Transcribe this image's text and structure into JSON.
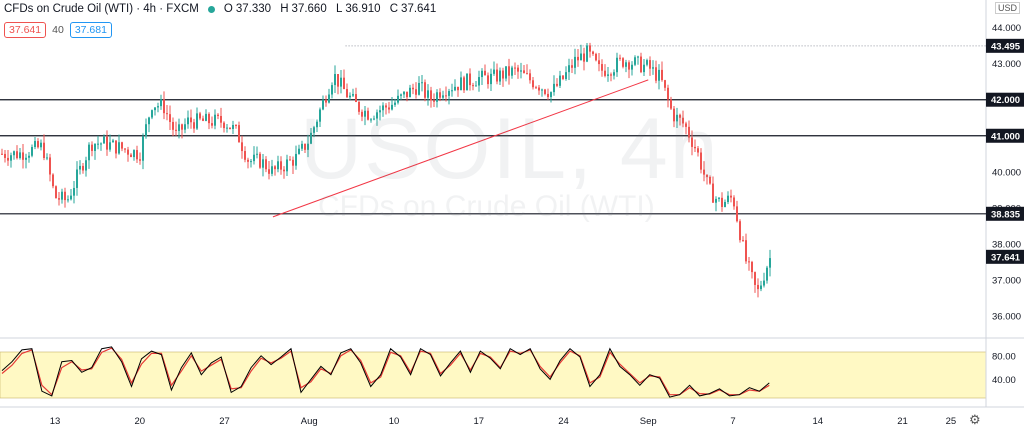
{
  "header": {
    "symbol_title": "CFDs on Crude Oil (WTI) · 4h · FXCM",
    "ohlc": [
      {
        "label": "O",
        "value": "37.330"
      },
      {
        "label": "H",
        "value": "37.660"
      },
      {
        "label": "L",
        "value": "36.910"
      },
      {
        "label": "C",
        "value": "37.641"
      }
    ],
    "bid": "37.641",
    "spread": "40",
    "ask": "37.681",
    "currency": "USD",
    "watermark": "USOIL, 4h",
    "watermark_sub": "CFDs on Crude Oil (WTI)"
  },
  "colors": {
    "up": "#26a69a",
    "down": "#ef5350",
    "trendline": "#f23645",
    "stoch_band": "#fff9c4",
    "k_line": "#000000",
    "d_line": "#e53935"
  },
  "chart_data": {
    "type": "line",
    "title": "CFDs on Crude Oil (WTI) · 4h · FXCM",
    "xlabel": "",
    "ylabel": "",
    "ylim": [
      35.5,
      44.6
    ],
    "x_tick_labels": [
      "13",
      "20",
      "27",
      "Aug",
      "10",
      "17",
      "24",
      "Sep",
      "7",
      "14",
      "21",
      "25"
    ],
    "y_tick_labels": [
      "44.000",
      "43.000",
      "42.000",
      "41.000",
      "40.000",
      "39.000",
      "38.000",
      "37.000",
      "36.000"
    ],
    "price_labels": [
      "43.495",
      "42.000",
      "41.000",
      "38.835",
      "37.641"
    ],
    "horizontal_levels": [
      43.495,
      42.0,
      41.0,
      38.835
    ],
    "trendline": {
      "from": [
        "Jul 31",
        38.75
      ],
      "to": [
        "Aug 31",
        42.55
      ]
    },
    "series": [
      {
        "x": [
          "Jul 10",
          "Jul 12",
          "Jul 13",
          "Jul 14",
          "Jul 16",
          "Jul 17",
          "Jul 20",
          "Jul 21",
          "Jul 22",
          "Jul 23",
          "Jul 24",
          "Jul 27",
          "Jul 28",
          "Jul 29",
          "Jul 30",
          "Jul 31",
          "Aug 2",
          "Aug 3",
          "Aug 4",
          "Aug 5",
          "Aug 6",
          "Aug 7",
          "Aug 8",
          "Aug 10",
          "Aug 12",
          "Aug 13",
          "Aug 14",
          "Aug 17",
          "Aug 18",
          "Aug 20",
          "Aug 21",
          "Aug 23",
          "Aug 24",
          "Aug 25",
          "Aug 26",
          "Aug 27",
          "Aug 28",
          "Aug 29",
          "Aug 31",
          "Sep 1",
          "Sep 2",
          "Sep 3",
          "Sep 4",
          "Sep 5",
          "Sep 6",
          "Sep 7",
          "Sep 8",
          "Sep 9",
          "Sep 10"
        ],
        "values": [
          40.5,
          40.7,
          39.3,
          39.2,
          40.8,
          40.8,
          40.5,
          41.9,
          41.8,
          41.0,
          41.4,
          41.4,
          41.1,
          40.3,
          40.3,
          40.0,
          40.4,
          40.9,
          41.8,
          42.7,
          42.2,
          41.8,
          41.6,
          41.9,
          42.4,
          42.0,
          42.3,
          42.6,
          42.6,
          42.8,
          42.6,
          42.2,
          42.6,
          43.1,
          43.3,
          42.8,
          42.9,
          43.1,
          42.9,
          42.6,
          41.6,
          41.3,
          40.6,
          39.5,
          39.1,
          39.3,
          37.6,
          36.6,
          37.6
        ]
      }
    ],
    "stochastic": {
      "ylim": [
        0,
        100
      ],
      "y_tick_labels": [
        "80.00",
        "40.00"
      ],
      "band": [
        20,
        80
      ],
      "k": [
        55,
        70,
        90,
        92,
        20,
        12,
        70,
        72,
        52,
        60,
        92,
        95,
        70,
        28,
        75,
        88,
        82,
        22,
        60,
        85,
        48,
        68,
        78,
        18,
        28,
        60,
        80,
        65,
        78,
        92,
        18,
        40,
        62,
        48,
        85,
        92,
        68,
        28,
        48,
        92,
        78,
        48,
        92,
        82,
        46,
        68,
        88,
        52,
        88,
        76,
        58,
        92,
        82,
        92,
        58,
        40,
        72,
        92,
        78,
        28,
        48,
        92,
        62,
        48,
        30,
        48,
        42,
        10,
        14,
        30,
        12,
        16,
        24,
        12,
        14,
        26,
        20,
        34
      ],
      "d": [
        50,
        64,
        84,
        90,
        30,
        14,
        60,
        70,
        56,
        58,
        86,
        93,
        74,
        34,
        66,
        84,
        84,
        30,
        54,
        80,
        54,
        64,
        74,
        24,
        26,
        54,
        76,
        68,
        76,
        88,
        26,
        36,
        58,
        50,
        80,
        90,
        72,
        34,
        44,
        86,
        80,
        52,
        88,
        84,
        50,
        64,
        84,
        56,
        84,
        78,
        60,
        88,
        84,
        90,
        62,
        44,
        68,
        88,
        80,
        34,
        44,
        86,
        66,
        50,
        34,
        46,
        44,
        14,
        14,
        26,
        16,
        15,
        22,
        14,
        14,
        22,
        20,
        30
      ]
    }
  }
}
